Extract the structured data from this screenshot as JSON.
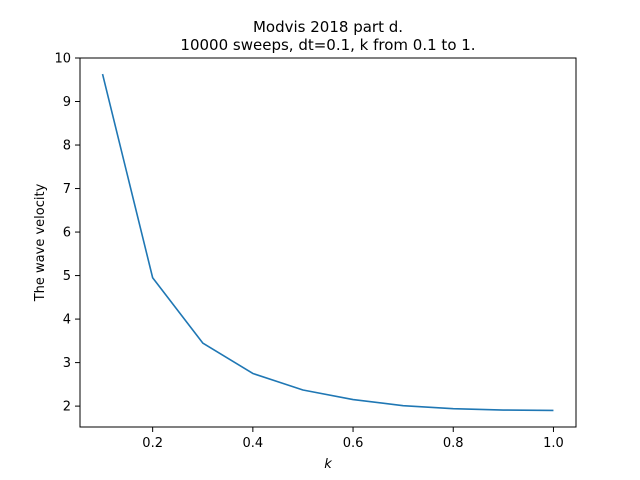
{
  "chart_data": {
    "type": "line",
    "title": "Modvis 2018 part d.",
    "subtitle": "10000 sweeps, dt=0.1, k from 0.1 to 1.",
    "xlabel": "k",
    "ylabel": "The wave velocity",
    "xlim": [
      0.055,
      1.045
    ],
    "ylim": [
      1.52,
      10.0
    ],
    "x_ticks": [
      0.2,
      0.4,
      0.6,
      0.8,
      1.0
    ],
    "x_tick_labels": [
      "0.2",
      "0.4",
      "0.6",
      "0.8",
      "1.0"
    ],
    "y_ticks": [
      2,
      3,
      4,
      5,
      6,
      7,
      8,
      9,
      10
    ],
    "y_tick_labels": [
      "2",
      "3",
      "4",
      "5",
      "6",
      "7",
      "8",
      "9",
      "10"
    ],
    "grid": false,
    "series": [
      {
        "color": "#1f77b4",
        "x": [
          0.1,
          0.2,
          0.3,
          0.4,
          0.5,
          0.6,
          0.7,
          0.8,
          0.9,
          1.0
        ],
        "y": [
          9.63,
          4.95,
          3.45,
          2.75,
          2.37,
          2.15,
          2.01,
          1.94,
          1.91,
          1.9
        ]
      }
    ]
  }
}
